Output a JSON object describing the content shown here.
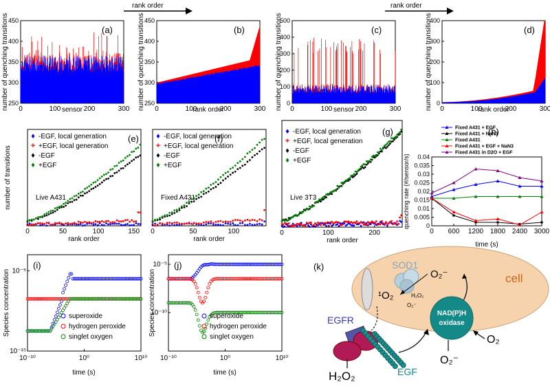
{
  "header": {
    "rank_order_label": "rank order"
  },
  "chart_data": [
    {
      "id": "a",
      "type": "bar",
      "panel_label": "(a)",
      "xlabel": "sensor",
      "ylabel": "number of quenching transitions",
      "xlim": [
        0,
        300
      ],
      "ylim": [
        250,
        450
      ],
      "xticks": [
        0,
        100,
        200,
        300
      ],
      "yticks": [
        250,
        300,
        350,
        400,
        450
      ],
      "series": [
        {
          "name": "",
          "color": "#ff0000",
          "values": []
        },
        {
          "name": "",
          "color": "#0000ff",
          "values": []
        }
      ]
    },
    {
      "id": "b",
      "type": "bar",
      "panel_label": "(b)",
      "xlabel": "rank order",
      "ylabel": "number of quenching transitions",
      "xlim": [
        0,
        300
      ],
      "ylim": [
        250,
        450
      ],
      "xticks": [
        0,
        100,
        200,
        300
      ],
      "yticks": [
        250,
        300,
        350,
        400,
        450
      ],
      "series": [
        {
          "name": "",
          "color": "#ff0000",
          "values": []
        },
        {
          "name": "",
          "color": "#0000ff",
          "values": []
        }
      ]
    },
    {
      "id": "c",
      "type": "bar",
      "panel_label": "(c)",
      "xlabel": "sensor",
      "ylabel": "number of quenching transitions",
      "xlim": [
        0,
        300
      ],
      "ylim": [
        0,
        500
      ],
      "xticks": [
        0,
        100,
        200,
        300
      ],
      "yticks": [
        0,
        100,
        200,
        300,
        400,
        500
      ],
      "series": [
        {
          "name": "",
          "color": "#ff0000",
          "values": []
        },
        {
          "name": "",
          "color": "#0000ff",
          "values": []
        }
      ]
    },
    {
      "id": "d",
      "type": "area",
      "panel_label": "(d)",
      "xlabel": "rank order",
      "ylabel": "number of quenching transitions",
      "xlim": [
        0,
        300
      ],
      "ylim": [
        0,
        400
      ],
      "xticks": [
        0,
        100,
        200,
        300
      ],
      "yticks": [
        0,
        100,
        200,
        300,
        400
      ],
      "series": [
        {
          "name": "",
          "color": "#ff0000",
          "values": []
        },
        {
          "name": "",
          "color": "#0000ff",
          "values": []
        }
      ]
    },
    {
      "id": "e",
      "type": "scatter",
      "panel_label": "(e)",
      "annotation": "Live A431",
      "xlabel": "rank order",
      "ylabel": "number of transitions",
      "xlim": [
        0,
        160
      ],
      "ylim": [
        0,
        120
      ],
      "xticks": [
        0,
        50,
        100,
        150
      ],
      "yticks": [],
      "series": [
        {
          "name": "-EGF, local generation",
          "color": "#0000ff",
          "final": 1
        },
        {
          "name": "+EGF, local generation",
          "color": "#ff0000",
          "final": 10
        },
        {
          "name": "-EGF",
          "color": "#000000",
          "final": 88
        },
        {
          "name": "+EGF",
          "color": "#008000",
          "final": 100
        }
      ]
    },
    {
      "id": "f",
      "type": "scatter",
      "panel_label": "(f)",
      "annotation": "Fixed A431",
      "xlabel": "rank order",
      "ylabel": "",
      "xlim": [
        0,
        140
      ],
      "ylim": [
        0,
        120
      ],
      "xticks": [
        0,
        50,
        100
      ],
      "yticks": [],
      "series": [
        {
          "name": "-EGF, local generation",
          "color": "#0000ff",
          "final": 2
        },
        {
          "name": "+EGF, local generation",
          "color": "#ff0000",
          "final": 12
        },
        {
          "name": "-EGF",
          "color": "#000000",
          "final": 98
        },
        {
          "name": "+EGF",
          "color": "#008000",
          "final": 110
        }
      ]
    },
    {
      "id": "g",
      "type": "scatter",
      "panel_label": "(g)",
      "annotation": "Live 3T3",
      "xlabel": "rank order",
      "ylabel": "",
      "xlim": [
        0,
        260
      ],
      "ylim": [
        0,
        75
      ],
      "xticks": [
        0,
        100,
        200
      ],
      "yticks": [],
      "series": [
        {
          "name": "-EGF, local generation",
          "color": "#0000ff",
          "final": 2
        },
        {
          "name": "+EGF, local generation",
          "color": "#ff0000",
          "final": 4
        },
        {
          "name": "-EGF",
          "color": "#000000",
          "final": 66
        },
        {
          "name": "+EGF",
          "color": "#008000",
          "final": 68
        }
      ]
    },
    {
      "id": "h",
      "type": "line",
      "panel_label": "(h)",
      "xlabel": "time (s)",
      "ylabel": "quenching rate (#/sensor/s)",
      "xlim": [
        0,
        3000
      ],
      "ylim": [
        0,
        0.04
      ],
      "x": [
        0,
        600,
        1200,
        1800,
        2400,
        3000
      ],
      "xticks": [
        0,
        600,
        1200,
        1800,
        2400,
        3000
      ],
      "yticks": [
        0,
        0.005,
        0.01,
        0.015,
        0.02,
        0.025,
        0.03,
        0.035,
        0.04
      ],
      "ytick_labels": [
        "0",
        "0.005",
        "0.01",
        "0.015",
        "0.02",
        "0.025",
        "0.03",
        "0.035",
        "0.04"
      ],
      "series": [
        {
          "name": "Fixed A431 + EGF",
          "color": "#0000ff",
          "marker": "triangle",
          "values": [
            0.017,
            0.021,
            0.024,
            0.026,
            0.023,
            0.023
          ]
        },
        {
          "name": "Fixed A431 + NaN3",
          "color": "#000000",
          "marker": "dot",
          "values": [
            0.016,
            0.006,
            0.002,
            0.002,
            0.001,
            0.002
          ]
        },
        {
          "name": "Fixed A431",
          "color": "#008000",
          "marker": "triangle",
          "values": [
            0.016,
            0.016,
            0.017,
            0.017,
            0.017,
            0.017
          ]
        },
        {
          "name": "Fixed A431 + EGF + NaN3",
          "color": "#ff0000",
          "marker": "triangle",
          "values": [
            0.016,
            0.008,
            0.003,
            0.004,
            0.0005,
            0.008
          ]
        },
        {
          "name": "Fixed A431 in D2O + EGF",
          "color": "#800080",
          "marker": "triangle",
          "values": [
            0.019,
            0.025,
            0.033,
            0.032,
            0.028,
            0.026
          ]
        }
      ]
    },
    {
      "id": "i",
      "type": "scatter",
      "panel_label": "(i)",
      "xlabel": "time (s)",
      "ylabel": "Species concentration",
      "xlim_exp": [
        -10,
        10
      ],
      "ylim_exp": [
        -15,
        -3
      ],
      "xtick_exps": [
        -10,
        0,
        10
      ],
      "ytick_exps": [
        -5,
        -15
      ],
      "series": [
        {
          "name": "superoxide",
          "color": "#0000ff",
          "start_exp": -12.5,
          "final_exp": -6
        },
        {
          "name": "hydrogen peroxide",
          "color": "#ff0000",
          "start_exp": -8.5,
          "final_exp": -8.5
        },
        {
          "name": "singlet oxygen",
          "color": "#008000",
          "start_exp": -12.5,
          "final_exp": -8.5
        }
      ]
    },
    {
      "id": "j",
      "type": "scatter",
      "panel_label": "(j)",
      "xlabel": "time (s)",
      "ylabel": "Species concentration",
      "xlim_exp": [
        -10,
        10
      ],
      "ylim_exp": [
        -14,
        -4
      ],
      "xtick_exps": [
        -10,
        0,
        10
      ],
      "ytick_exps": [
        -5,
        -10
      ],
      "series": [
        {
          "name": "superoxide",
          "color": "#0000ff",
          "start_exp": -6.5,
          "final_exp": -5
        },
        {
          "name": "hydrogen peroxide",
          "color": "#ff0000",
          "start_exp": -6.5,
          "final_exp": -6.5
        },
        {
          "name": "singlet oxygen",
          "color": "#008000",
          "start_exp": -9,
          "final_exp": -10
        }
      ]
    }
  ],
  "diagram": {
    "panel_label": "(k)",
    "cell_label": "cell",
    "sod1_label": "SOD1",
    "superoxide_label": "O₂⁻",
    "singlet_label": "¹O₂",
    "h2o2_small": "H₂O₂",
    "o2_small": "O₂⁻",
    "nadph_line1": "NAD(P)H",
    "nadph_line2": "oxidase",
    "o2_label": "O₂",
    "o2_minus_label": "O₂⁻",
    "egfr_label": "EGFR",
    "egf_label": "EGF",
    "h2o2_label": "H₂O₂"
  }
}
